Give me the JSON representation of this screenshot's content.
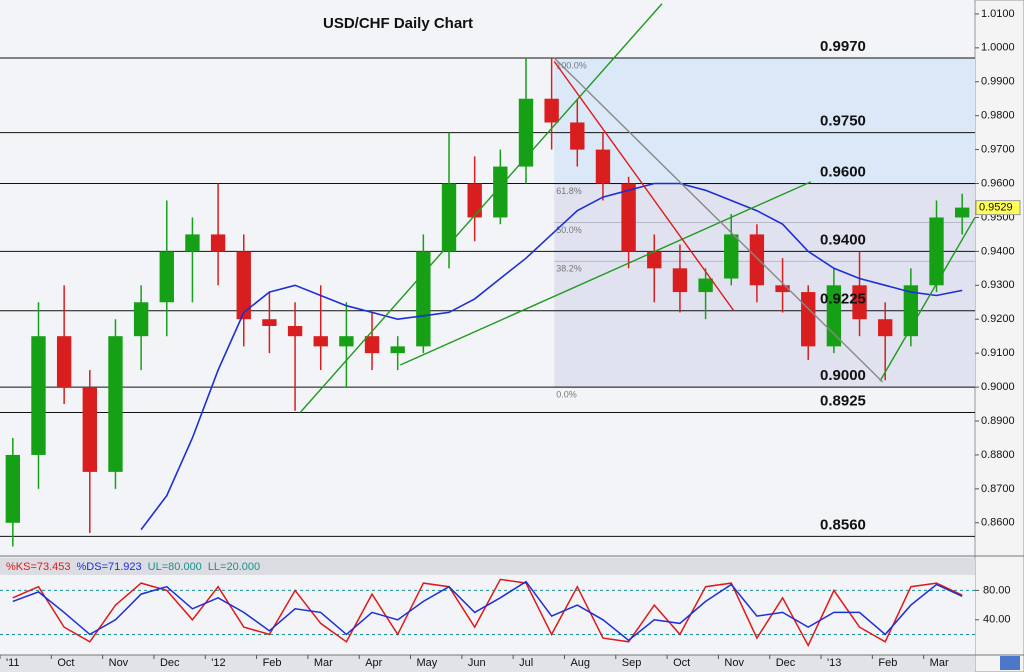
{
  "chart_data": {
    "type": "candlestick",
    "title": "USD/CHF Daily Chart",
    "categories": [
      "'11",
      null,
      "Oct",
      null,
      "Nov",
      null,
      "Dec",
      null,
      "'12",
      null,
      "Feb",
      null,
      "Mar",
      null,
      "Apr",
      null,
      "May",
      null,
      "Jun",
      null,
      "Jul",
      null,
      "Aug",
      null,
      "Sep",
      null,
      "Oct",
      null,
      "Nov",
      null,
      "Dec",
      null,
      "'13",
      null,
      "Feb",
      null,
      "Mar",
      null
    ],
    "open": [
      0.86,
      0.88,
      0.915,
      0.9,
      0.875,
      0.915,
      0.925,
      0.94,
      0.945,
      0.94,
      0.92,
      0.918,
      0.915,
      0.912,
      0.915,
      0.91,
      0.912,
      0.94,
      0.96,
      0.95,
      0.965,
      0.985,
      0.978,
      0.97,
      0.96,
      0.94,
      0.935,
      0.928,
      0.932,
      0.945,
      0.93,
      0.928,
      0.912,
      0.93,
      0.92,
      0.915,
      0.93,
      0.95
    ],
    "high": [
      0.885,
      0.925,
      0.93,
      0.905,
      0.92,
      0.93,
      0.955,
      0.95,
      0.96,
      0.945,
      0.928,
      0.925,
      0.93,
      0.925,
      0.922,
      0.915,
      0.945,
      0.975,
      0.968,
      0.97,
      0.997,
      0.997,
      0.985,
      0.975,
      0.962,
      0.945,
      0.942,
      0.935,
      0.951,
      0.948,
      0.938,
      0.93,
      0.935,
      0.94,
      0.925,
      0.935,
      0.955,
      0.957
    ],
    "low": [
      0.853,
      0.87,
      0.895,
      0.857,
      0.87,
      0.905,
      0.915,
      0.925,
      0.93,
      0.912,
      0.91,
      0.893,
      0.905,
      0.9,
      0.905,
      0.905,
      0.91,
      0.935,
      0.943,
      0.948,
      0.96,
      0.97,
      0.965,
      0.955,
      0.935,
      0.925,
      0.922,
      0.92,
      0.93,
      0.925,
      0.922,
      0.908,
      0.91,
      0.915,
      0.902,
      0.912,
      0.928,
      0.945
    ],
    "close": [
      0.88,
      0.915,
      0.9,
      0.875,
      0.915,
      0.925,
      0.94,
      0.945,
      0.94,
      0.92,
      0.918,
      0.915,
      0.912,
      0.915,
      0.91,
      0.912,
      0.94,
      0.96,
      0.95,
      0.965,
      0.985,
      0.978,
      0.97,
      0.96,
      0.94,
      0.935,
      0.928,
      0.932,
      0.945,
      0.93,
      0.928,
      0.912,
      0.93,
      0.92,
      0.915,
      0.93,
      0.95,
      0.9529
    ],
    "colors": {
      "up": "#16a016",
      "down": "#d81e1e"
    },
    "moving_average": {
      "color": "#1c2fd6",
      "values": [
        null,
        null,
        null,
        null,
        null,
        0.858,
        0.868,
        0.885,
        0.905,
        0.922,
        0.928,
        0.93,
        0.927,
        0.924,
        0.922,
        0.92,
        0.921,
        0.922,
        0.926,
        0.932,
        0.938,
        0.945,
        0.952,
        0.956,
        0.958,
        0.96,
        0.96,
        0.958,
        0.955,
        0.952,
        0.948,
        0.94,
        0.935,
        0.932,
        0.93,
        0.928,
        0.927,
        0.9285
      ]
    },
    "ylim": [
      0.8505,
      1.0141
    ],
    "yticks": [
      {
        "value": 0.86,
        "label": "0.8600"
      },
      {
        "value": 0.87,
        "label": "0.8700"
      },
      {
        "value": 0.88,
        "label": "0.8800"
      },
      {
        "value": 0.89,
        "label": "0.8900"
      },
      {
        "value": 0.9,
        "label": "0.9000"
      },
      {
        "value": 0.91,
        "label": "0.9100"
      },
      {
        "value": 0.92,
        "label": "0.9200"
      },
      {
        "value": 0.93,
        "label": "0.9300"
      },
      {
        "value": 0.94,
        "label": "0.9400"
      },
      {
        "value": 0.95,
        "label": "0.9500"
      },
      {
        "value": 0.96,
        "label": "0.9600"
      },
      {
        "value": 0.97,
        "label": "0.9700"
      },
      {
        "value": 0.98,
        "label": "0.9800"
      },
      {
        "value": 0.99,
        "label": "0.9900"
      },
      {
        "value": 1.0,
        "label": "1.0000"
      },
      {
        "value": 1.01,
        "label": "1.0100"
      }
    ],
    "levels": [
      {
        "value": 0.997,
        "label": "0.9970"
      },
      {
        "value": 0.975,
        "label": "0.9750"
      },
      {
        "value": 0.96,
        "label": "0.9600"
      },
      {
        "value": 0.94,
        "label": "0.9400"
      },
      {
        "value": 0.9225,
        "label": "0.9225"
      },
      {
        "value": 0.9,
        "label": "0.9000"
      },
      {
        "value": 0.8925,
        "label": "0.8925"
      },
      {
        "value": 0.856,
        "label": "0.8560"
      }
    ],
    "fib": {
      "high": 0.997,
      "low": 0.9,
      "ratios": [
        {
          "value": 100,
          "label": "100.0%"
        },
        {
          "value": 61.8,
          "label": "61.8%"
        },
        {
          "value": 50,
          "label": "50.0%"
        },
        {
          "value": 38.2,
          "label": "38.2%"
        },
        {
          "value": 0,
          "label": "0.0%"
        }
      ]
    },
    "trendlines": [
      {
        "color": "#1f9a1f",
        "points": [
          [
            11.2,
            0.8925
          ],
          [
            25.3,
            1.013
          ]
        ]
      },
      {
        "color": "#1f9a1f",
        "points": [
          [
            15.1,
            0.9065
          ],
          [
            31.1,
            0.9605
          ]
        ]
      },
      {
        "color": "#1f9a1f",
        "points": [
          [
            33.8,
            0.9018
          ],
          [
            37.5,
            0.95
          ]
        ]
      },
      {
        "color": "#e01818",
        "points": [
          [
            21.1,
            0.996
          ],
          [
            28.1,
            0.9225
          ]
        ]
      },
      {
        "color": "#888888",
        "points": [
          [
            21.1,
            0.997
          ],
          [
            33.9,
            0.9015
          ]
        ]
      }
    ],
    "last_price": {
      "value": 0.9529,
      "label": "0.9529"
    },
    "oscillator": {
      "type": "line",
      "series": [
        {
          "name": "%KS=73.453",
          "color": "#e01818",
          "values": [
            70,
            85,
            30,
            10,
            60,
            90,
            80,
            40,
            85,
            30,
            20,
            80,
            35,
            10,
            75,
            20,
            90,
            85,
            30,
            95,
            90,
            20,
            85,
            15,
            10,
            60,
            20,
            85,
            90,
            15,
            70,
            5,
            80,
            30,
            10,
            85,
            90,
            73.453
          ]
        },
        {
          "name": "%DS=71.923",
          "color": "#1c2fd6",
          "values": [
            65,
            78,
            50,
            20,
            40,
            75,
            85,
            55,
            70,
            50,
            25,
            55,
            50,
            20,
            50,
            40,
            65,
            85,
            50,
            70,
            92,
            45,
            60,
            40,
            12,
            40,
            35,
            65,
            88,
            45,
            50,
            30,
            50,
            50,
            20,
            60,
            88,
            71.923
          ]
        }
      ],
      "bands": [
        {
          "value": 80,
          "label": "UL=80.000",
          "color": "#1a8f8f"
        },
        {
          "value": 20,
          "label": "LL=20.000",
          "color": "#1a8f8f"
        }
      ],
      "ylim": [
        -8,
        101
      ],
      "yticks": [
        {
          "value": 80,
          "label": "80.00"
        },
        {
          "value": 40,
          "label": "40.00"
        }
      ]
    }
  }
}
